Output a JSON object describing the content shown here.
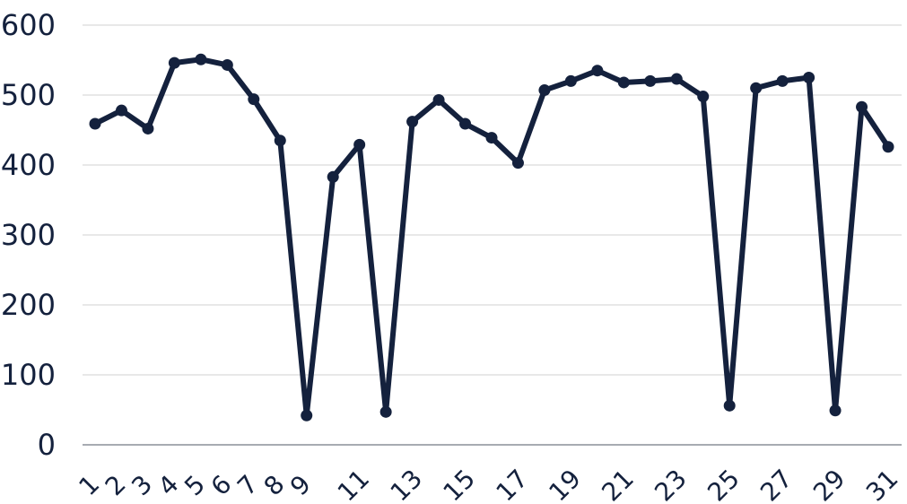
{
  "chart_data": {
    "type": "line",
    "title": "",
    "xlabel": "",
    "ylabel": "",
    "ylim": [
      0,
      600
    ],
    "yticks": [
      0,
      100,
      200,
      300,
      400,
      500,
      600
    ],
    "grid": true,
    "legend": "none",
    "x": [
      1,
      2,
      3,
      4,
      5,
      6,
      7,
      8,
      9,
      10,
      11,
      12,
      13,
      14,
      15,
      16,
      17,
      18,
      19,
      20,
      21,
      22,
      23,
      24,
      25,
      26,
      27,
      28,
      29,
      30,
      31
    ],
    "xtick_labels": [
      "1",
      "2",
      "3",
      "4",
      "5",
      "6",
      "7",
      "8",
      "9",
      "",
      "11",
      "",
      "13",
      "",
      "15",
      "",
      "17",
      "",
      "19",
      "",
      "21",
      "",
      "23",
      "",
      "25",
      "",
      "27",
      "",
      "29",
      "",
      "31"
    ],
    "series": [
      {
        "values": [
          459,
          478,
          452,
          546,
          551,
          543,
          494,
          435,
          42,
          383,
          429,
          47,
          462,
          493,
          459,
          439,
          403,
          507,
          520,
          535,
          518,
          520,
          523,
          498,
          56,
          510,
          520,
          525,
          49,
          483,
          426
        ]
      }
    ],
    "colors": {
      "line": "#14213d",
      "grid": "#d0d0d0",
      "axis": "#14213d",
      "text": "#14213d"
    }
  }
}
